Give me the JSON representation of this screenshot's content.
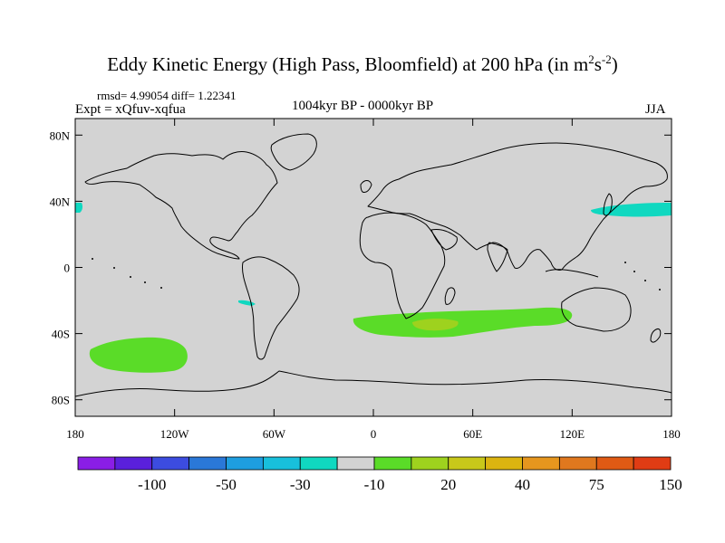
{
  "title": {
    "main": "Eddy Kinetic Energy (High Pass, Bloomfield) at 200 hPa (in m",
    "exp1": "2",
    "mid": "s",
    "exp2": "-2",
    "end": ")"
  },
  "stats": "rmsd= 4.99054 diff= 1.22341",
  "expt": "Expt = xQfuv-xqfua",
  "period": "1004kyr BP - 0000kyr BP",
  "season": "JJA",
  "map": {
    "ocean_color": "#d3d3d3",
    "lat_ticks": [
      {
        "label": "80N",
        "value": 80
      },
      {
        "label": "40N",
        "value": 40
      },
      {
        "label": "0",
        "value": 0
      },
      {
        "label": "40S",
        "value": -40
      },
      {
        "label": "80S",
        "value": -80
      }
    ],
    "lon_ticks": [
      {
        "label": "180",
        "value": -180
      },
      {
        "label": "120W",
        "value": -120
      },
      {
        "label": "60W",
        "value": -60
      },
      {
        "label": "0",
        "value": 0
      },
      {
        "label": "60E",
        "value": 60
      },
      {
        "label": "120E",
        "value": 120
      },
      {
        "label": "180",
        "value": 180
      }
    ]
  },
  "colorbar": {
    "colors": [
      "#8a1ee6",
      "#5a20dc",
      "#3c4ce0",
      "#2a78d8",
      "#1e9ee0",
      "#18c0dc",
      "#10d8c0",
      "#d3d3d3",
      "#5adc28",
      "#9ed21e",
      "#c8c81a",
      "#dcb410",
      "#e6961e",
      "#e0781e",
      "#e05a14",
      "#e03c14"
    ],
    "labels": [
      "-100",
      "-50",
      "-30",
      "-10",
      "20",
      "40",
      "75",
      "150"
    ]
  }
}
